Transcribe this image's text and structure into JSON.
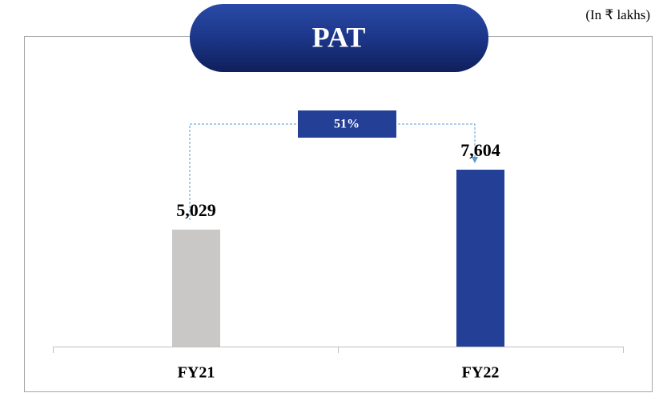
{
  "chart_data": {
    "type": "bar",
    "title": "PAT",
    "subtitle": "(In ₹ lakhs)",
    "categories": [
      "FY21",
      "FY22"
    ],
    "values": [
      5029,
      7604
    ],
    "value_labels": [
      "5,029",
      "7,604"
    ],
    "colors": [
      "#c9c8c6",
      "#233f96"
    ],
    "annotation": "51%"
  }
}
